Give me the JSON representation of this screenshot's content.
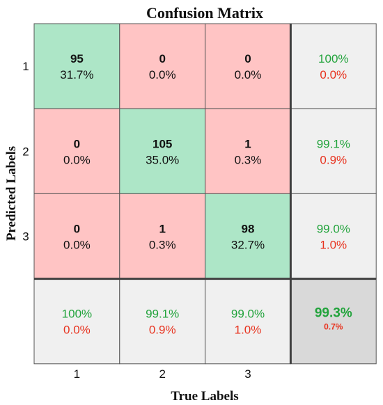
{
  "chart_data": {
    "type": "heatmap",
    "title": "Confusion Matrix",
    "xlabel": "True Labels",
    "ylabel": "Predicted Labels",
    "row_labels": [
      "1",
      "2",
      "3"
    ],
    "col_labels": [
      "1",
      "2",
      "3"
    ],
    "matrix": [
      [
        {
          "count": "95",
          "pct": "31.7%"
        },
        {
          "count": "0",
          "pct": "0.0%"
        },
        {
          "count": "0",
          "pct": "0.0%"
        }
      ],
      [
        {
          "count": "0",
          "pct": "0.0%"
        },
        {
          "count": "105",
          "pct": "35.0%"
        },
        {
          "count": "1",
          "pct": "0.3%"
        }
      ],
      [
        {
          "count": "0",
          "pct": "0.0%"
        },
        {
          "count": "1",
          "pct": "0.3%"
        },
        {
          "count": "98",
          "pct": "32.7%"
        }
      ]
    ],
    "row_summary": [
      {
        "correct": "100%",
        "incorrect": "0.0%"
      },
      {
        "correct": "99.1%",
        "incorrect": "0.9%"
      },
      {
        "correct": "99.0%",
        "incorrect": "1.0%"
      }
    ],
    "col_summary": [
      {
        "correct": "100%",
        "incorrect": "0.0%"
      },
      {
        "correct": "99.1%",
        "incorrect": "0.9%"
      },
      {
        "correct": "99.0%",
        "incorrect": "1.0%"
      }
    ],
    "overall": {
      "correct": "99.3%",
      "incorrect": "0.7%"
    }
  },
  "colors": {
    "correct_cell": "#ade6c7",
    "incorrect_cell": "#ffc4c4",
    "summary_cell": "#f0f0f0",
    "overall_cell": "#d9d9d9",
    "correct_text": "#21a33b",
    "incorrect_text": "#e8331f",
    "grid": "#555555",
    "divider": "#404040"
  }
}
